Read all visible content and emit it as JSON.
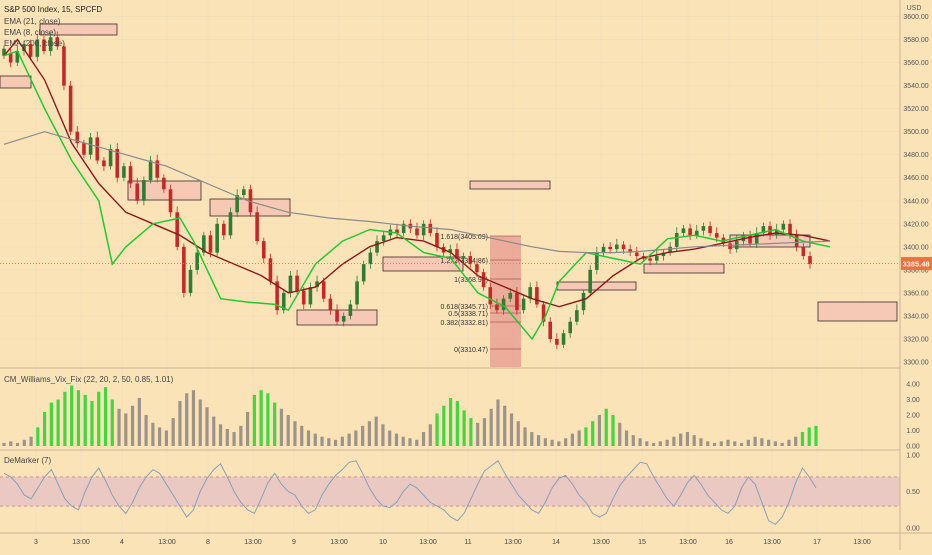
{
  "header": {
    "title": "S&P 500 Index, 15, SPCFD"
  },
  "colors": {
    "bg": "#fbe3b8",
    "up": "#2e7d32",
    "down": "#c62828",
    "ema_fast": "#22c832",
    "ema_mid": "#8b1a1a",
    "ema_slow": "#8a8a8a",
    "box": "#f6c9b4",
    "box_stroke": "#3a2a2a",
    "fib": "#e08080",
    "vix_green": "#3fd83f",
    "vix_gray": "#9e9388",
    "demarker_line": "#8aa0b8",
    "demarker_band": "#e8c4c4",
    "price_tag": "#f07040",
    "grid": "#eedcbc"
  },
  "price_pane": {
    "currency": "USD",
    "ticks": [
      "3600.00",
      "3580.00",
      "3560.00",
      "3540.00",
      "3520.00",
      "3500.00",
      "3480.00",
      "3460.00",
      "3440.00",
      "3420.00",
      "3400.00",
      "3380.00",
      "3360.00",
      "3340.00",
      "3320.00",
      "3300.00"
    ],
    "last_price": "3385.48",
    "legend": [
      "EMA (21, close)",
      "EMA (8, close)",
      "EMA (200, close)"
    ],
    "fib_labels": [
      "1.618(3405.09)",
      "1.272(3384.86)",
      "1(3368.95)",
      "0.618(3345.71)",
      "0.5(3338.71)",
      "0.382(3332.81)",
      "0(3310.47)"
    ]
  },
  "vix_pane": {
    "title": "CM_Williams_Vix_Fix (22, 20, 2, 50, 0.85, 1.01)",
    "ticks": [
      "4.00",
      "3.00",
      "2.00",
      "1.00",
      "0.00"
    ]
  },
  "demarker_pane": {
    "title": "DeMarker (7)",
    "ticks": [
      "1.00",
      "0.50",
      "0.00"
    ]
  },
  "time_axis": {
    "labels": [
      "3",
      "13:00",
      "4",
      "13:00",
      "8",
      "13:00",
      "9",
      "13:00",
      "10",
      "13:00",
      "11",
      "13:00",
      "14",
      "13:00",
      "15",
      "13:00",
      "16",
      "13:00",
      "17",
      "13:00"
    ]
  },
  "chart_data": {
    "type": "candlestick",
    "price_scale": [
      3300,
      3610
    ],
    "series": [
      {
        "name": "EMA (21, close)",
        "anchors": [
          [
            0,
            3566
          ],
          [
            10,
            3580
          ],
          [
            30,
            3545
          ],
          [
            50,
            3490
          ],
          [
            70,
            3455
          ],
          [
            90,
            3430
          ],
          [
            110,
            3420
          ],
          [
            130,
            3410
          ],
          [
            150,
            3395
          ],
          [
            170,
            3385
          ],
          [
            190,
            3375
          ],
          [
            210,
            3360
          ],
          [
            230,
            3365
          ],
          [
            250,
            3385
          ],
          [
            270,
            3400
          ],
          [
            290,
            3408
          ],
          [
            310,
            3405
          ],
          [
            330,
            3395
          ],
          [
            350,
            3375
          ],
          [
            370,
            3365
          ],
          [
            390,
            3355
          ],
          [
            410,
            3348
          ],
          [
            430,
            3355
          ],
          [
            450,
            3375
          ],
          [
            470,
            3390
          ],
          [
            490,
            3395
          ],
          [
            510,
            3398
          ],
          [
            530,
            3403
          ],
          [
            550,
            3408
          ],
          [
            570,
            3412
          ],
          [
            590,
            3410
          ],
          [
            610,
            3405
          ]
        ]
      },
      {
        "name": "EMA (8, close)",
        "anchors": [
          [
            0,
            3566
          ],
          [
            10,
            3570
          ],
          [
            30,
            3520
          ],
          [
            50,
            3475
          ],
          [
            70,
            3440
          ],
          [
            80,
            3385
          ],
          [
            90,
            3400
          ],
          [
            110,
            3420
          ],
          [
            130,
            3425
          ],
          [
            140,
            3405
          ],
          [
            160,
            3355
          ],
          [
            180,
            3352
          ],
          [
            200,
            3350
          ],
          [
            210,
            3345
          ],
          [
            230,
            3385
          ],
          [
            250,
            3405
          ],
          [
            270,
            3415
          ],
          [
            290,
            3412
          ],
          [
            310,
            3395
          ],
          [
            330,
            3390
          ],
          [
            350,
            3360
          ],
          [
            370,
            3348
          ],
          [
            390,
            3320
          ],
          [
            400,
            3340
          ],
          [
            410,
            3370
          ],
          [
            430,
            3395
          ],
          [
            450,
            3390
          ],
          [
            470,
            3385
          ],
          [
            490,
            3407
          ],
          [
            510,
            3410
          ],
          [
            530,
            3405
          ],
          [
            550,
            3410
          ],
          [
            570,
            3415
          ],
          [
            590,
            3405
          ],
          [
            610,
            3400
          ]
        ]
      },
      {
        "name": "EMA (200, close)",
        "anchors": [
          [
            0,
            3489
          ],
          [
            30,
            3500
          ],
          [
            60,
            3490
          ],
          [
            90,
            3480
          ],
          [
            120,
            3470
          ],
          [
            150,
            3455
          ],
          [
            180,
            3440
          ],
          [
            210,
            3430
          ],
          [
            240,
            3425
          ],
          [
            270,
            3422
          ],
          [
            300,
            3418
          ],
          [
            330,
            3415
          ],
          [
            350,
            3410
          ],
          [
            370,
            3405
          ],
          [
            390,
            3400
          ],
          [
            410,
            3396
          ],
          [
            430,
            3395
          ],
          [
            450,
            3395
          ],
          [
            470,
            3396
          ],
          [
            490,
            3398
          ],
          [
            510,
            3400
          ],
          [
            530,
            3401
          ],
          [
            550,
            3402
          ],
          [
            570,
            3403
          ],
          [
            590,
            3404
          ],
          [
            610,
            3405
          ]
        ]
      }
    ],
    "candles": [
      [
        3566,
        3572
      ],
      [
        3568,
        3560
      ],
      [
        3560,
        3570
      ],
      [
        3570,
        3576
      ],
      [
        3576,
        3565
      ],
      [
        3565,
        3580
      ],
      [
        3580,
        3570
      ],
      [
        3570,
        3582
      ],
      [
        3582,
        3574
      ],
      [
        3574,
        3540
      ],
      [
        3540,
        3500
      ],
      [
        3500,
        3490
      ],
      [
        3490,
        3480
      ],
      [
        3480,
        3495
      ],
      [
        3495,
        3475
      ],
      [
        3475,
        3470
      ],
      [
        3470,
        3485
      ],
      [
        3485,
        3460
      ],
      [
        3460,
        3470
      ],
      [
        3470,
        3455
      ],
      [
        3455,
        3440
      ],
      [
        3440,
        3458
      ],
      [
        3458,
        3475
      ],
      [
        3475,
        3460
      ],
      [
        3460,
        3450
      ],
      [
        3450,
        3430
      ],
      [
        3430,
        3400
      ],
      [
        3400,
        3360
      ],
      [
        3360,
        3380
      ],
      [
        3380,
        3395
      ],
      [
        3395,
        3410
      ],
      [
        3410,
        3395
      ],
      [
        3395,
        3420
      ],
      [
        3420,
        3410
      ],
      [
        3410,
        3430
      ],
      [
        3430,
        3445
      ],
      [
        3445,
        3450
      ],
      [
        3450,
        3430
      ],
      [
        3430,
        3405
      ],
      [
        3405,
        3390
      ],
      [
        3390,
        3370
      ],
      [
        3370,
        3345
      ],
      [
        3345,
        3360
      ],
      [
        3360,
        3375
      ],
      [
        3375,
        3362
      ],
      [
        3362,
        3350
      ],
      [
        3350,
        3365
      ],
      [
        3365,
        3370
      ],
      [
        3370,
        3355
      ],
      [
        3355,
        3345
      ],
      [
        3345,
        3335
      ],
      [
        3335,
        3340
      ],
      [
        3340,
        3350
      ],
      [
        3350,
        3370
      ],
      [
        3370,
        3385
      ],
      [
        3385,
        3395
      ],
      [
        3395,
        3405
      ],
      [
        3405,
        3410
      ],
      [
        3410,
        3415
      ],
      [
        3415,
        3412
      ],
      [
        3412,
        3420
      ],
      [
        3420,
        3416
      ],
      [
        3416,
        3410
      ],
      [
        3410,
        3420
      ],
      [
        3420,
        3412
      ],
      [
        3412,
        3400
      ],
      [
        3400,
        3395
      ],
      [
        3395,
        3398
      ],
      [
        3398,
        3390
      ],
      [
        3390,
        3392
      ],
      [
        3392,
        3385
      ],
      [
        3385,
        3378
      ],
      [
        3378,
        3365
      ],
      [
        3365,
        3350
      ],
      [
        3350,
        3345
      ],
      [
        3345,
        3355
      ],
      [
        3355,
        3360
      ],
      [
        3360,
        3345
      ],
      [
        3345,
        3355
      ],
      [
        3355,
        3365
      ],
      [
        3365,
        3350
      ],
      [
        3350,
        3335
      ],
      [
        3335,
        3320
      ],
      [
        3320,
        3315
      ],
      [
        3315,
        3325
      ],
      [
        3325,
        3335
      ],
      [
        3335,
        3345
      ],
      [
        3345,
        3360
      ],
      [
        3360,
        3380
      ],
      [
        3380,
        3395
      ],
      [
        3395,
        3400
      ],
      [
        3400,
        3398
      ],
      [
        3398,
        3402
      ],
      [
        3402,
        3398
      ],
      [
        3398,
        3395
      ],
      [
        3395,
        3392
      ],
      [
        3392,
        3390
      ],
      [
        3390,
        3388
      ],
      [
        3388,
        3392
      ],
      [
        3392,
        3395
      ],
      [
        3395,
        3400
      ],
      [
        3400,
        3412
      ],
      [
        3412,
        3416
      ],
      [
        3416,
        3410
      ],
      [
        3410,
        3414
      ],
      [
        3414,
        3418
      ],
      [
        3418,
        3412
      ],
      [
        3412,
        3408
      ],
      [
        3408,
        3403
      ],
      [
        3403,
        3398
      ],
      [
        3398,
        3405
      ],
      [
        3405,
        3410
      ],
      [
        3410,
        3403
      ],
      [
        3403,
        3412
      ],
      [
        3412,
        3418
      ],
      [
        3418,
        3410
      ],
      [
        3410,
        3415
      ],
      [
        3415,
        3420
      ],
      [
        3420,
        3410
      ],
      [
        3410,
        3400
      ],
      [
        3400,
        3392
      ],
      [
        3392,
        3385
      ]
    ],
    "vix": [
      0.2,
      0.3,
      0.2,
      0.4,
      0.6,
      1.2,
      2.2,
      2.8,
      3.0,
      3.5,
      3.9,
      3.6,
      3.3,
      2.9,
      3.5,
      3.8,
      3.0,
      2.4,
      2.1,
      2.6,
      3.1,
      2.0,
      1.5,
      1.2,
      1.0,
      1.8,
      2.9,
      3.4,
      3.6,
      3.0,
      2.5,
      1.9,
      1.4,
      1.1,
      0.9,
      1.3,
      2.2,
      3.3,
      3.6,
      3.4,
      2.8,
      2.4,
      2.0,
      1.6,
      1.3,
      1.0,
      0.8,
      0.6,
      0.5,
      0.4,
      0.6,
      0.8,
      1.0,
      1.3,
      1.6,
      1.9,
      1.4,
      1.0,
      0.8,
      0.6,
      0.5,
      0.4,
      0.9,
      1.4,
      2.1,
      2.6,
      3.1,
      2.9,
      2.3,
      1.8,
      1.5,
      1.8,
      2.4,
      3.0,
      2.6,
      2.1,
      1.6,
      1.2,
      0.9,
      0.7,
      0.5,
      0.4,
      0.3,
      0.5,
      0.8,
      1.0,
      1.2,
      1.6,
      2.0,
      2.4,
      2.0,
      1.5,
      1.0,
      0.7,
      0.5,
      0.3,
      0.2,
      0.3,
      0.4,
      0.6,
      0.8,
      0.9,
      0.7,
      0.5,
      0.3,
      0.2,
      0.3,
      0.4,
      0.3,
      0.2,
      0.4,
      0.6,
      0.5,
      0.4,
      0.3,
      0.2,
      0.4,
      0.6,
      0.9,
      1.2,
      1.3
    ],
    "vix_green": [
      5,
      6,
      7,
      8,
      9,
      10,
      11,
      12,
      13,
      14,
      15,
      16,
      37,
      38,
      39,
      40,
      64,
      65,
      66,
      67,
      68,
      69,
      86,
      87,
      89,
      90,
      118,
      119,
      120,
      121
    ],
    "demarker": [
      0.75,
      0.7,
      0.6,
      0.45,
      0.4,
      0.55,
      0.7,
      0.8,
      0.6,
      0.4,
      0.3,
      0.25,
      0.5,
      0.7,
      0.82,
      0.65,
      0.45,
      0.3,
      0.2,
      0.35,
      0.55,
      0.7,
      0.8,
      0.75,
      0.6,
      0.45,
      0.3,
      0.15,
      0.25,
      0.5,
      0.68,
      0.8,
      0.88,
      0.7,
      0.5,
      0.35,
      0.25,
      0.2,
      0.4,
      0.62,
      0.75,
      0.6,
      0.5,
      0.45,
      0.3,
      0.2,
      0.25,
      0.45,
      0.6,
      0.72,
      0.8,
      0.9,
      0.92,
      0.75,
      0.55,
      0.4,
      0.3,
      0.28,
      0.35,
      0.5,
      0.6,
      0.55,
      0.45,
      0.35,
      0.3,
      0.25,
      0.15,
      0.1,
      0.2,
      0.4,
      0.6,
      0.78,
      0.85,
      0.92,
      0.75,
      0.6,
      0.45,
      0.35,
      0.25,
      0.2,
      0.35,
      0.55,
      0.68,
      0.72,
      0.6,
      0.45,
      0.35,
      0.2,
      0.15,
      0.2,
      0.4,
      0.58,
      0.7,
      0.8,
      0.9,
      0.88,
      0.7,
      0.55,
      0.4,
      0.3,
      0.45,
      0.62,
      0.72,
      0.6,
      0.45,
      0.35,
      0.25,
      0.2,
      0.3,
      0.55,
      0.7,
      0.6,
      0.35,
      0.1,
      0.05,
      0.15,
      0.35,
      0.62,
      0.82,
      0.7,
      0.55
    ]
  }
}
